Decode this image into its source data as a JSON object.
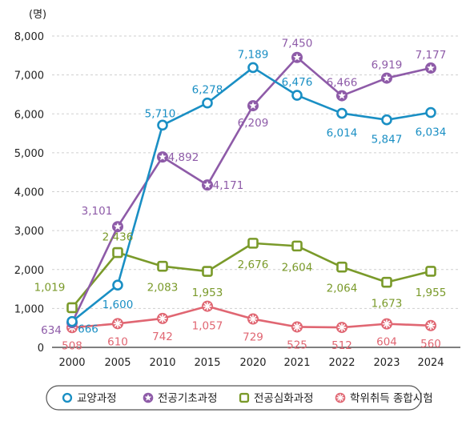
{
  "chart_data": {
    "type": "line",
    "unit_label": "(명)",
    "categories": [
      "2000",
      "2005",
      "2010",
      "2015",
      "2020",
      "2021",
      "2022",
      "2023",
      "2024"
    ],
    "ylim": [
      0,
      8000
    ],
    "yticks": [
      0,
      1000,
      2000,
      3000,
      4000,
      5000,
      6000,
      7000,
      8000
    ],
    "ytick_labels": [
      "0",
      "1,000",
      "2,000",
      "3,000",
      "4,000",
      "5,000",
      "6,000",
      "7,000",
      "8,000"
    ],
    "grid": true,
    "legend_position": "bottom",
    "series": [
      {
        "name": "교양과정",
        "color": "#1a8fc4",
        "marker": "circle",
        "values": [
          666,
          1600,
          5710,
          6278,
          7189,
          6476,
          6014,
          5847,
          6034
        ],
        "labels": [
          "666",
          "1,600",
          "5,710",
          "6,278",
          "7,189",
          "6,476",
          "6,014",
          "5,847",
          "6,034"
        ]
      },
      {
        "name": "전공기초과정",
        "color": "#8e5ba8",
        "marker": "star",
        "values": [
          634,
          3101,
          4892,
          4171,
          6209,
          7450,
          6466,
          6919,
          7177
        ],
        "labels": [
          "634",
          "3,101",
          "4,892",
          "4,171",
          "6,209",
          "7,450",
          "6,466",
          "6,919",
          "7,177"
        ]
      },
      {
        "name": "전공심화과정",
        "color": "#7a9a2a",
        "marker": "square",
        "values": [
          1019,
          2436,
          2083,
          1953,
          2676,
          2604,
          2064,
          1673,
          1955
        ],
        "labels": [
          "1,019",
          "2,436",
          "2,083",
          "1,953",
          "2,676",
          "2,604",
          "2,064",
          "1,673",
          "1,955"
        ]
      },
      {
        "name": "학위취득 종합시험",
        "color": "#e06672",
        "marker": "asterisk",
        "values": [
          508,
          610,
          742,
          1057,
          729,
          525,
          512,
          604,
          560
        ],
        "labels": [
          "508",
          "610",
          "742",
          "1,057",
          "729",
          "525",
          "512",
          "604",
          "560"
        ]
      }
    ]
  }
}
